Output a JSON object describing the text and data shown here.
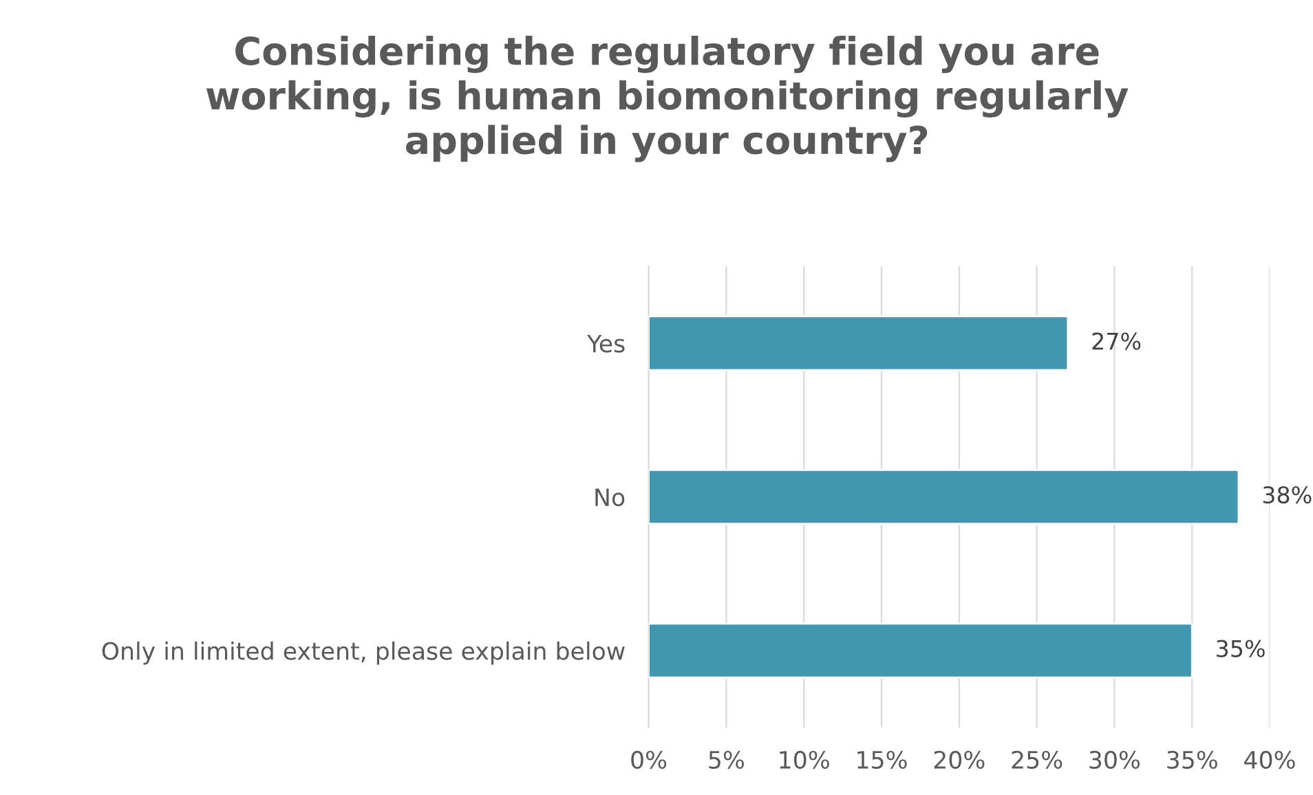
{
  "chart_data": {
    "type": "bar",
    "orientation": "horizontal",
    "title": "Considering the regulatory field you are\nworking, is human biomonitoring regularly\napplied in your country?",
    "categories": [
      "Yes",
      "No",
      "Only in limited extent, please explain below"
    ],
    "values": [
      27,
      38,
      35
    ],
    "value_labels": [
      "27%",
      "38%",
      "35%"
    ],
    "color": "#4197b0",
    "xlim": [
      0,
      40
    ],
    "xticks": [
      {
        "value": 0,
        "label": "0%"
      },
      {
        "value": 5,
        "label": "5%"
      },
      {
        "value": 10,
        "label": "10%"
      },
      {
        "value": 15,
        "label": "15%"
      },
      {
        "value": 20,
        "label": "20%"
      },
      {
        "value": 25,
        "label": "25%"
      },
      {
        "value": 30,
        "label": "30%"
      },
      {
        "value": 35,
        "label": "35%"
      },
      {
        "value": 40,
        "label": "40%"
      }
    ],
    "grid": "x"
  }
}
